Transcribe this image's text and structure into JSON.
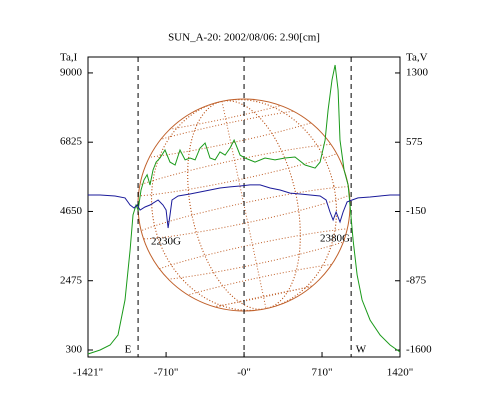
{
  "chart_data": {
    "type": "line",
    "title": "SUN_A-20: 2002/08/06: 2.90[cm]",
    "y_label": "Ta,I",
    "y2_label": "Ta,V",
    "xlim": [
      -1421,
      1420
    ],
    "xticks": [
      {
        "value": -1421,
        "label": "-1421\""
      },
      {
        "value": -710,
        "label": "-710\""
      },
      {
        "value": 0,
        "label": "-0\""
      },
      {
        "value": 710,
        "label": "710\""
      },
      {
        "value": 1420,
        "label": "1420\""
      }
    ],
    "ylim": [
      80,
      9500
    ],
    "yticks": [
      300,
      2475,
      4650,
      6825,
      9000
    ],
    "y2lim": [
      -1673,
      1467
    ],
    "y2ticks": [
      -1600,
      -875,
      -150,
      575,
      1300
    ],
    "vlines": [
      -965,
      0,
      975
    ],
    "annotations": [
      "E",
      "W",
      "2230G",
      "2380G"
    ],
    "series": [
      {
        "name": "Ta,I",
        "color": "#1a9a1a",
        "x": [
          -1421,
          -1311,
          -1220,
          -1148,
          -1084,
          -1038,
          -1011,
          -984,
          -965,
          -938,
          -911,
          -883,
          -856,
          -829,
          -801,
          -765,
          -720,
          -674,
          -628,
          -583,
          -537,
          -492,
          -446,
          -401,
          -355,
          -310,
          -264,
          -219,
          -173,
          -128,
          -91,
          -36,
          9,
          100,
          191,
          282,
          373,
          464,
          556,
          647,
          692,
          738,
          765,
          801,
          829,
          856,
          874,
          911,
          947,
          965,
          993,
          1029,
          1075,
          1148,
          1239,
          1330,
          1420
        ],
        "values": [
          174,
          300,
          457,
          771,
          1870,
          3440,
          4540,
          4850,
          4690,
          5320,
          5640,
          5800,
          5480,
          5950,
          6200,
          6330,
          6580,
          6200,
          6110,
          6580,
          6270,
          6330,
          6270,
          6640,
          6800,
          6330,
          6270,
          6520,
          6420,
          6640,
          6890,
          6420,
          6330,
          6200,
          6330,
          6270,
          6330,
          6360,
          6110,
          6010,
          6200,
          6890,
          7840,
          8780,
          9250,
          8460,
          6890,
          5950,
          5480,
          4850,
          3750,
          2660,
          1870,
          1240,
          771,
          457,
          237
        ]
      },
      {
        "name": "Ta,V",
        "color": "#1a1a9a",
        "axis": "y2",
        "x": [
          -1421,
          -1311,
          -1175,
          -1084,
          -1038,
          -1002,
          -974,
          -947,
          -902,
          -856,
          -783,
          -738,
          -710,
          -692,
          -674,
          -656,
          -601,
          -492,
          -401,
          -310,
          -219,
          -128,
          -36,
          55,
          146,
          237,
          328,
          419,
          510,
          601,
          692,
          747,
          783,
          811,
          838,
          874,
          902,
          938,
          984,
          1038,
          1148,
          1239,
          1330,
          1420
        ],
        "values": [
          23,
          23,
          12,
          -8,
          -82,
          -113,
          -82,
          -134,
          -103,
          -82,
          -30,
          -82,
          -134,
          -323,
          -187,
          -30,
          12,
          33,
          54,
          75,
          96,
          107,
          117,
          128,
          128,
          96,
          75,
          43,
          33,
          23,
          12,
          -30,
          -155,
          -239,
          -155,
          -260,
          -155,
          -50,
          -30,
          -8,
          2,
          12,
          23,
          23
        ]
      }
    ]
  }
}
